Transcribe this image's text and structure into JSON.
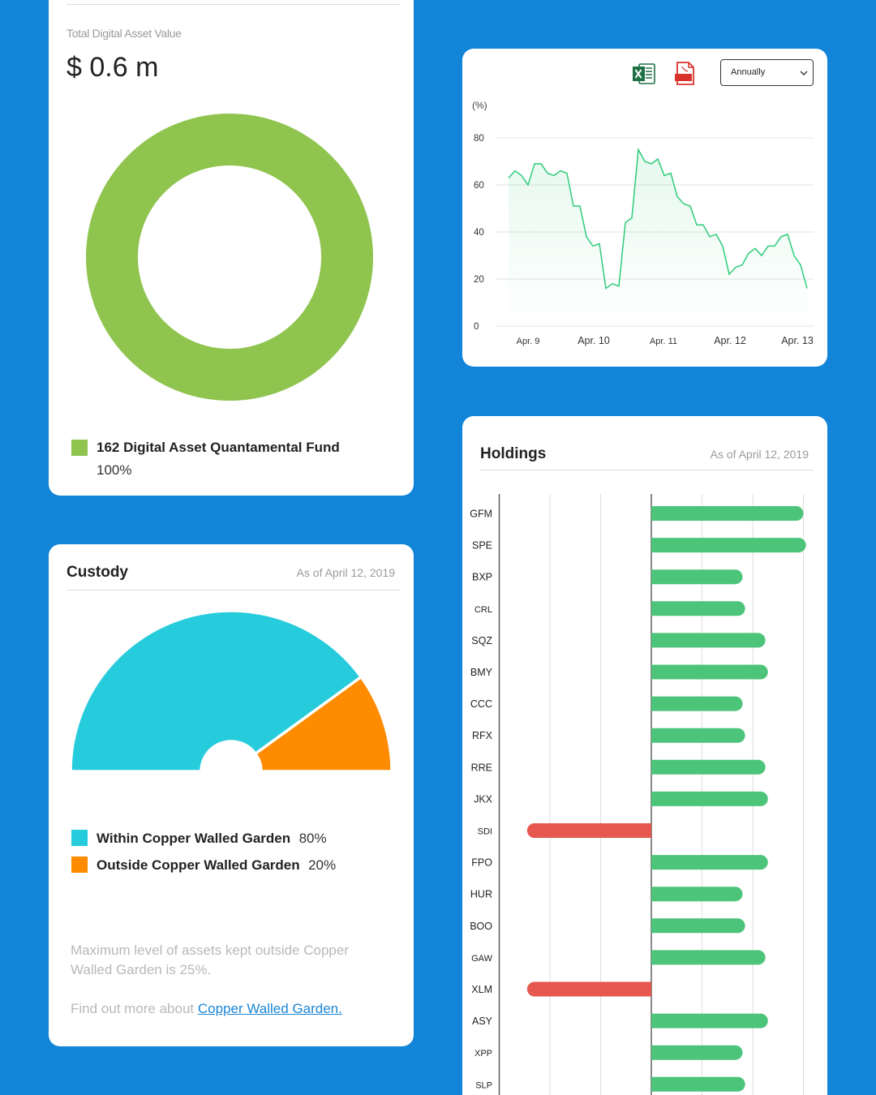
{
  "total_card": {
    "label": "Total Digital Asset Value",
    "value": "$ 0.6 m",
    "legend": [
      {
        "name": "162 Digital Asset Quantamental Fund",
        "pct": "100%",
        "color": "#8fc44f"
      }
    ]
  },
  "line_card": {
    "export_excel_icon": "excel-icon",
    "export_pdf_icon": "pdf-icon",
    "period_select": {
      "value": "Annually"
    },
    "chart_data": {
      "type": "area",
      "ylabel": "(%)",
      "ylim": [
        0,
        80
      ],
      "yticks": [
        "0",
        "20",
        "40",
        "60",
        "80"
      ],
      "xticks": [
        "Apr. 9",
        "Apr. 10",
        "Apr. 11",
        "Apr. 12",
        "Apr. 13"
      ],
      "color": "#2ecc7a",
      "values": [
        63,
        66,
        64,
        60,
        69,
        69,
        65,
        64,
        66,
        65,
        51,
        51,
        38,
        34,
        35,
        16,
        18,
        17,
        44,
        46,
        75,
        70,
        69,
        71,
        64,
        65,
        55,
        52,
        51,
        43,
        43,
        38,
        39,
        34,
        22,
        25,
        26,
        31,
        33,
        30,
        34,
        34,
        38,
        39,
        30,
        26,
        16
      ]
    }
  },
  "custody_card": {
    "title": "Custody",
    "as_of": "As of April 12, 2019",
    "chart_data": {
      "type": "pie",
      "categories": [
        "Within Copper Walled Garden",
        "Outside Copper Walled Garden"
      ],
      "values": [
        80,
        20
      ],
      "colors": [
        "#26ccdb",
        "#ff8b00"
      ]
    },
    "legend": [
      {
        "name": "Within Copper Walled Garden",
        "pct": "80%",
        "color": "#26ccdb"
      },
      {
        "name": "Outside Copper Walled Garden",
        "pct": "20%",
        "color": "#ff8b00"
      }
    ],
    "note": "Maximum level of assets kept outside Copper Walled Garden is 25%.",
    "find_out_text": "Find out more about ",
    "link_text": "Copper Walled Garden."
  },
  "holdings_card": {
    "title": "Holdings",
    "as_of": "As of April 12, 2019",
    "chart_data": {
      "type": "bar",
      "orientation": "horizontal",
      "xlim": [
        -3,
        3
      ],
      "positive_color": "#4cc47a",
      "negative_color": "#e5574f",
      "categories": [
        "GFM",
        "SPE",
        "BXP",
        "CRL",
        "SQZ",
        "BMY",
        "CCC",
        "RFX",
        "RRE",
        "JKX",
        "SDI",
        "FPO",
        "HUR",
        "BOO",
        "GAW",
        "XLM",
        "ASY",
        "XPP",
        "SLP"
      ],
      "values": [
        3.0,
        3.05,
        1.8,
        1.85,
        2.25,
        2.3,
        1.8,
        1.85,
        2.25,
        2.3,
        -2.45,
        2.3,
        1.8,
        1.85,
        2.25,
        -2.45,
        2.3,
        1.8,
        1.85
      ]
    }
  }
}
